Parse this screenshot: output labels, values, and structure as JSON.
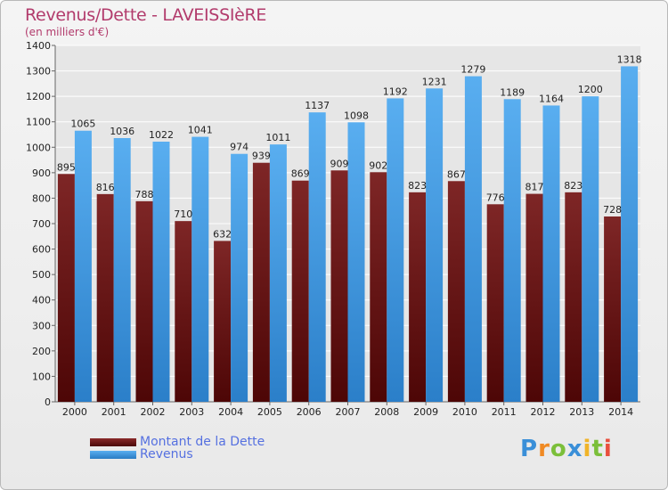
{
  "header": {
    "title": "Revenus/Dette - LAVEISSIèRE",
    "subtitle": "(en milliers d'€)"
  },
  "legend": {
    "debt_label": "Montant de la Dette",
    "revenue_label": "Revenus"
  },
  "logo": {
    "text": "Proxiti"
  },
  "colors": {
    "debt": "#6b1414",
    "revenue": "#3d97e0",
    "grid": "#ffffff",
    "axis_text": "#222222",
    "title": "#b23b6c"
  },
  "chart_data": {
    "type": "bar",
    "title": "Revenus/Dette - LAVEISSIèRE",
    "subtitle": "(en milliers d'€)",
    "categories": [
      "2000",
      "2001",
      "2002",
      "2003",
      "2004",
      "2005",
      "2006",
      "2007",
      "2008",
      "2009",
      "2010",
      "2011",
      "2012",
      "2013",
      "2014"
    ],
    "series": [
      {
        "name": "Montant de la Dette",
        "values": [
          895,
          816,
          788,
          710,
          632,
          939,
          869,
          909,
          902,
          823,
          867,
          776,
          817,
          823,
          728
        ]
      },
      {
        "name": "Revenus",
        "values": [
          1065,
          1036,
          1022,
          1041,
          974,
          1011,
          1137,
          1098,
          1192,
          1231,
          1279,
          1189,
          1164,
          1200,
          1318
        ]
      }
    ],
    "ylim": [
      0,
      1400
    ],
    "yticks": [
      0,
      100,
      200,
      300,
      400,
      500,
      600,
      700,
      800,
      900,
      1000,
      1100,
      1200,
      1300,
      1400
    ],
    "grid": true,
    "legend_position": "bottom-left"
  }
}
